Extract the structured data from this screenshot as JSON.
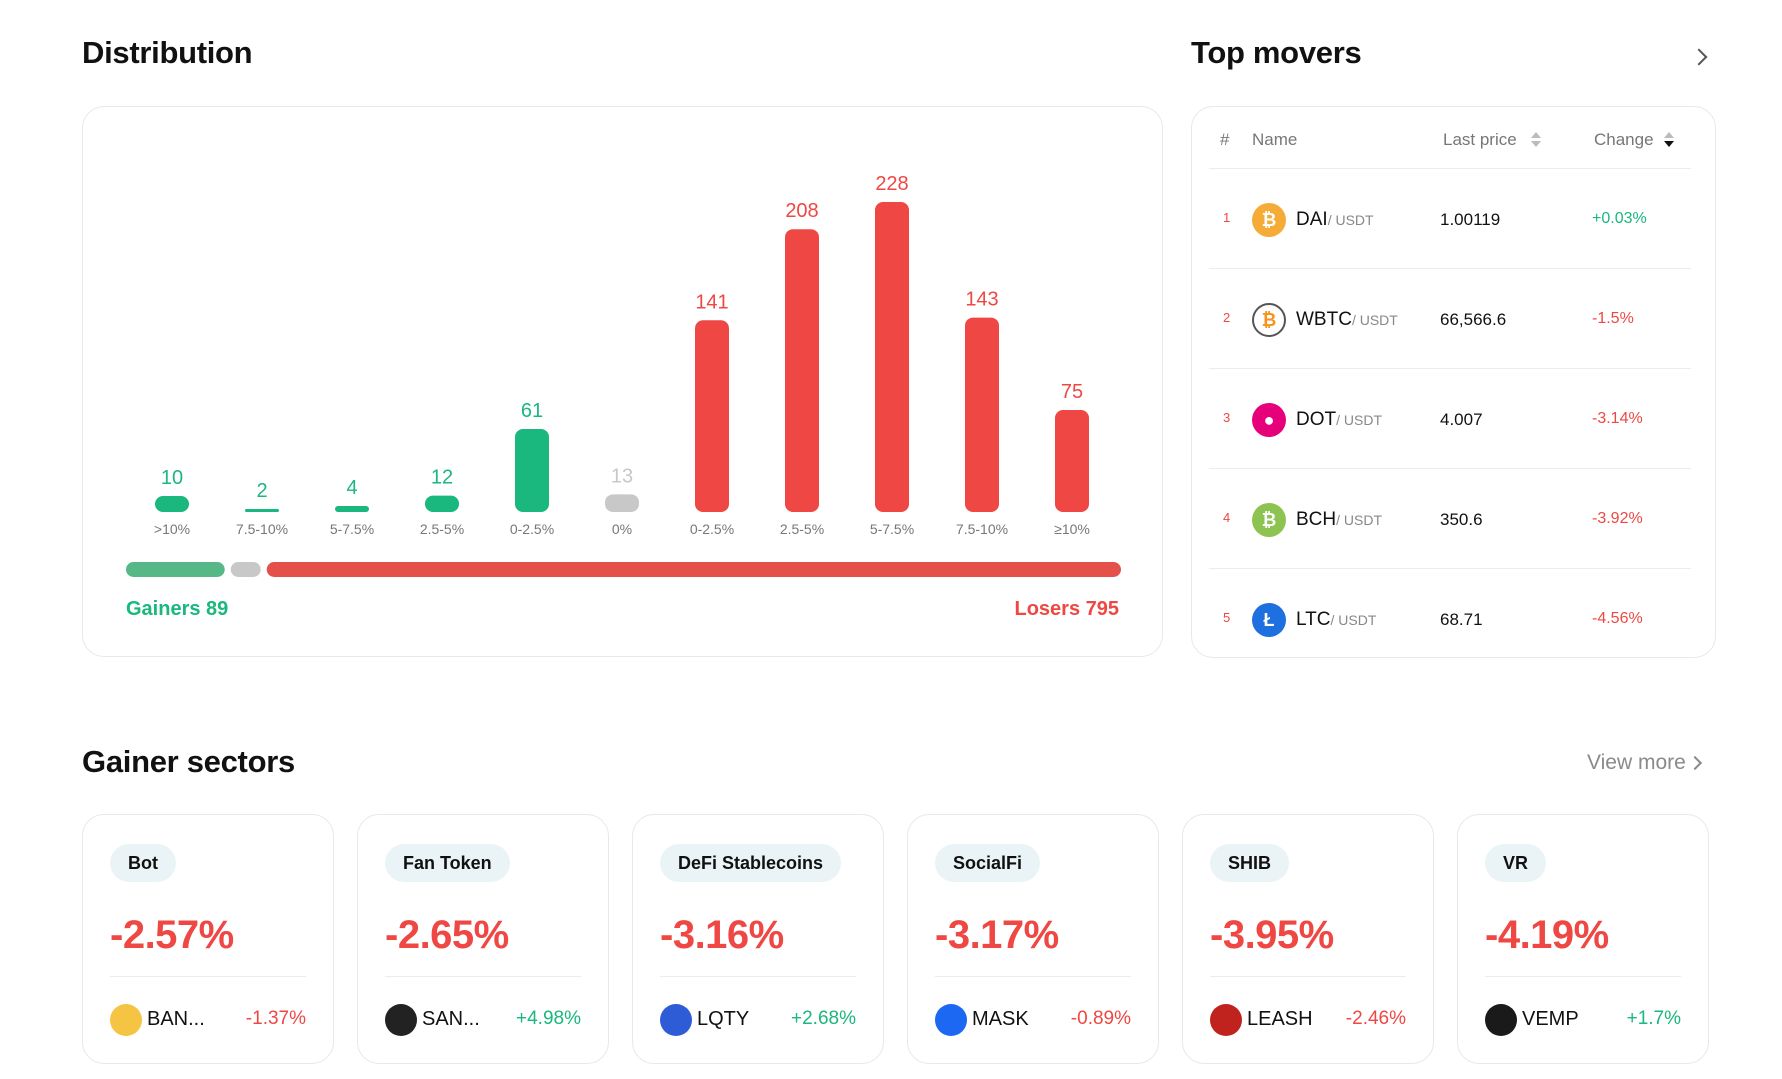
{
  "distribution": {
    "title": "Distribution",
    "gainers_label": "Gainers 89",
    "losers_label": "Losers 795",
    "colors": {
      "gain": "#1ab77e",
      "loss": "#ef4743",
      "flat": "#c8c8c8",
      "gain_bar": "#56b887",
      "loss_bar": "#e3514a"
    },
    "summary_split": {
      "gainers": 89,
      "flat": 13,
      "losers": 795
    }
  },
  "chart_data": {
    "type": "bar",
    "categories": [
      ">10%",
      "7.5-10%",
      "5-7.5%",
      "2.5-5%",
      "0-2.5%",
      "0%",
      "0-2.5%",
      "2.5-5%",
      "5-7.5%",
      "7.5-10%",
      "≥10%"
    ],
    "values": [
      10,
      2,
      4,
      12,
      61,
      13,
      141,
      208,
      228,
      143,
      75
    ],
    "groups": [
      "gain",
      "gain",
      "gain",
      "gain",
      "gain",
      "flat",
      "loss",
      "loss",
      "loss",
      "loss",
      "loss"
    ],
    "title": "",
    "xlabel": "",
    "ylabel": "",
    "ylim": [
      0,
      228
    ],
    "grid": false,
    "legend": "none"
  },
  "top_movers": {
    "title": "Top movers",
    "chevron_icon": "chevron-right-icon",
    "columns": {
      "rank": "#",
      "name": "Name",
      "price": "Last price",
      "change": "Change"
    },
    "rows": [
      {
        "rank": "1",
        "symbol": "DAI",
        "quote": "/ USDT",
        "price": "1.00119",
        "change": "+0.03%",
        "dir": "up",
        "icon": "dai-icon",
        "icon_color": "#f5ac37",
        "glyph": "₿"
      },
      {
        "rank": "2",
        "symbol": "WBTC",
        "quote": "/ USDT",
        "price": "66,566.6",
        "change": "-1.5%",
        "dir": "down",
        "icon": "wbtc-icon",
        "icon_color": "#ffffff",
        "glyph": "₿"
      },
      {
        "rank": "3",
        "symbol": "DOT",
        "quote": "/ USDT",
        "price": "4.007",
        "change": "-3.14%",
        "dir": "down",
        "icon": "dot-icon",
        "icon_color": "#e6007a",
        "glyph": "●"
      },
      {
        "rank": "4",
        "symbol": "BCH",
        "quote": "/ USDT",
        "price": "350.6",
        "change": "-3.92%",
        "dir": "down",
        "icon": "bch-icon",
        "icon_color": "#8dc351",
        "glyph": "₿"
      },
      {
        "rank": "5",
        "symbol": "LTC",
        "quote": "/ USDT",
        "price": "68.71",
        "change": "-4.56%",
        "dir": "down",
        "icon": "ltc-icon",
        "icon_color": "#1e6fe0",
        "glyph": "Ł"
      }
    ]
  },
  "gainer_sectors": {
    "title": "Gainer sectors",
    "view_more": "View more",
    "cards": [
      {
        "tag": "Bot",
        "pct": "-2.57%",
        "coin": "BAN...",
        "coin_change": "-1.37%",
        "dir": "down",
        "icon": "banana-icon",
        "icon_color": "#f6c443"
      },
      {
        "tag": "Fan Token",
        "pct": "-2.65%",
        "coin": "SAN...",
        "coin_change": "+4.98%",
        "dir": "up",
        "icon": "santos-icon",
        "icon_color": "#222222"
      },
      {
        "tag": "DeFi Stablecoins",
        "pct": "-3.16%",
        "coin": "LQTY",
        "coin_change": "+2.68%",
        "dir": "up",
        "icon": "lqty-icon",
        "icon_color": "#2e5bd6"
      },
      {
        "tag": "SocialFi",
        "pct": "-3.17%",
        "coin": "MASK",
        "coin_change": "-0.89%",
        "dir": "down",
        "icon": "mask-icon",
        "icon_color": "#1c68f3"
      },
      {
        "tag": "SHIB",
        "pct": "-3.95%",
        "coin": "LEASH",
        "coin_change": "-2.46%",
        "dir": "down",
        "icon": "leash-icon",
        "icon_color": "#c0231e"
      },
      {
        "tag": "VR",
        "pct": "-4.19%",
        "coin": "VEMP",
        "coin_change": "+1.7%",
        "dir": "up",
        "icon": "vemp-icon",
        "icon_color": "#1a1a1a"
      }
    ]
  }
}
